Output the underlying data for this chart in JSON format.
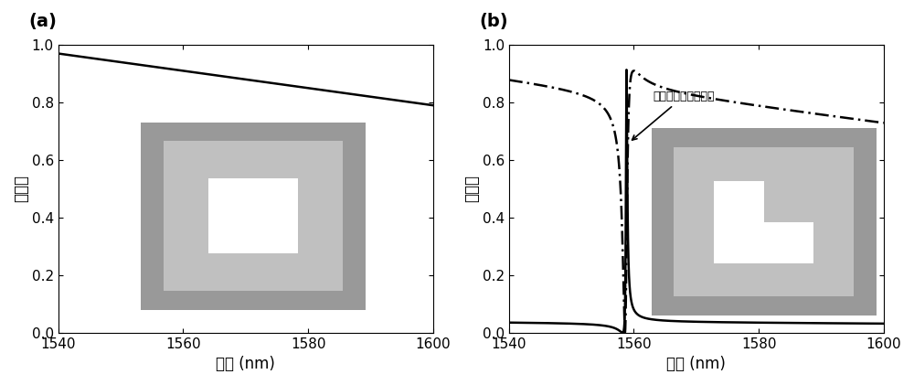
{
  "xlim": [
    1540,
    1600
  ],
  "ylim": [
    0,
    1
  ],
  "yticks": [
    0,
    0.2,
    0.4,
    0.6,
    0.8,
    1
  ],
  "xticks": [
    1540,
    1560,
    1580,
    1600
  ],
  "xlabel": "波长 (nm)",
  "ylabel": "透射率",
  "panel_a_label": "(a)",
  "panel_b_label": "(b)",
  "annotation_text": "准连续体束缚态模式",
  "dark_gray": "#999999",
  "light_gray": "#c0c0c0",
  "white": "#ffffff"
}
